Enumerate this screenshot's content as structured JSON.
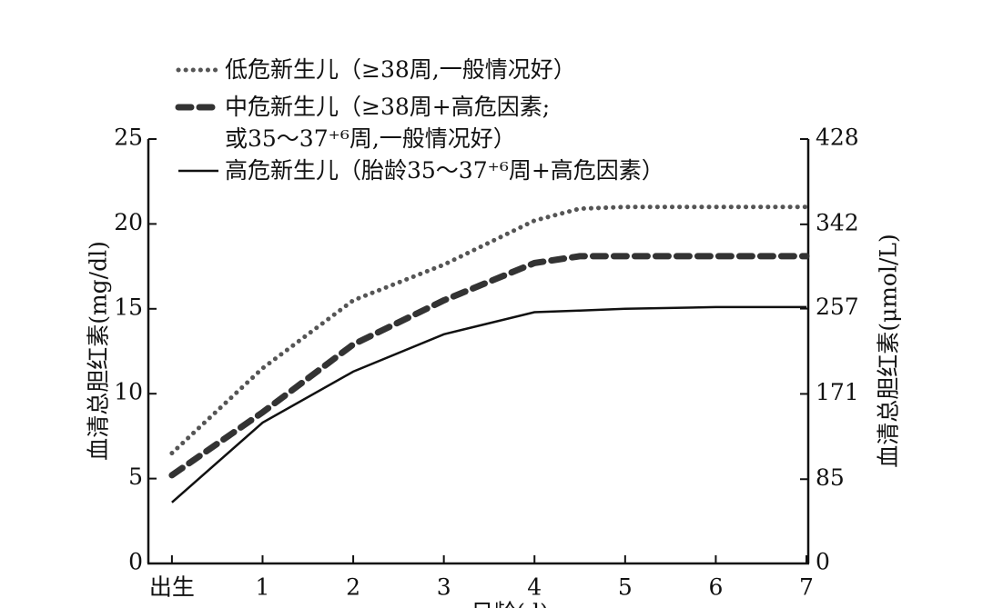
{
  "chart_data": {
    "type": "line",
    "x": [
      0,
      1,
      2,
      3,
      4,
      4.5,
      5,
      6,
      7
    ],
    "xlim": [
      -0.26,
      7.02
    ],
    "xticks": [
      {
        "value": 0,
        "label": "出生"
      },
      1,
      2,
      3,
      4,
      5,
      6,
      7
    ],
    "xlabel": "日龄(d)",
    "ylabel": "血清总胆红素(mg/dl)",
    "y2label": "血清总胆红素(μmol/L)",
    "ylim": [
      0,
      25
    ],
    "yticks": [
      0,
      5,
      10,
      15,
      20,
      25
    ],
    "y2lim": [
      0,
      428
    ],
    "y2ticks": [
      0,
      85,
      171,
      257,
      342,
      428
    ],
    "series": [
      {
        "name": "低危新生儿（≥38周,一般情况好）",
        "color": "#555555",
        "style": "dotted",
        "values": [
          6.5,
          11.5,
          15.5,
          17.6,
          20.2,
          20.9,
          21,
          21,
          21
        ]
      },
      {
        "name": "中危新生儿（≥38周+高危因素;\n或35～37⁺⁶周,一般情况好）",
        "color": "#333333",
        "style": "dashed",
        "values": [
          5.2,
          8.9,
          12.9,
          15.5,
          17.7,
          18.1,
          18.1,
          18.1,
          18.1
        ]
      },
      {
        "name": "高危新生儿（胎龄35～37⁺⁶周+高危因素）",
        "color": "#111111",
        "style": "solid",
        "values": [
          3.6,
          8.3,
          11.3,
          13.5,
          14.8,
          14.9,
          15,
          15.1,
          15.1
        ]
      }
    ]
  }
}
